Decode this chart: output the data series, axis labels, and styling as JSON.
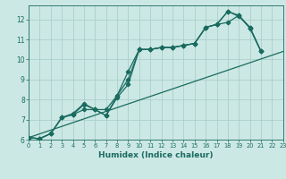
{
  "xlabel": "Humidex (Indice chaleur)",
  "bg_color": "#cce8e4",
  "grid_color": "#aacfca",
  "line_color": "#1a6b60",
  "xlim_min": 0,
  "xlim_max": 23,
  "ylim_min": 6,
  "ylim_max": 12.7,
  "yticks": [
    6,
    7,
    8,
    9,
    10,
    11,
    12
  ],
  "xticks": [
    0,
    1,
    2,
    3,
    4,
    5,
    6,
    7,
    8,
    9,
    10,
    11,
    12,
    13,
    14,
    15,
    16,
    17,
    18,
    19,
    20,
    21,
    22,
    23
  ],
  "series1_x": [
    0,
    1,
    2,
    3,
    4,
    5,
    6,
    7,
    8,
    9,
    10,
    11,
    12,
    13,
    14,
    15,
    16,
    17,
    18,
    19,
    20,
    21
  ],
  "series1_y": [
    6.1,
    6.05,
    6.3,
    7.1,
    7.3,
    7.8,
    7.5,
    7.2,
    8.2,
    9.4,
    10.5,
    10.5,
    10.6,
    10.6,
    10.7,
    10.8,
    11.6,
    11.75,
    11.85,
    12.2,
    11.6,
    10.4
  ],
  "series2_x": [
    0,
    1,
    2,
    3,
    4,
    5,
    6,
    7,
    8,
    9,
    10,
    11,
    12,
    13,
    14,
    15,
    16,
    17,
    18,
    19,
    20,
    21
  ],
  "series2_y": [
    6.1,
    6.05,
    6.3,
    7.1,
    7.25,
    7.5,
    7.5,
    7.2,
    8.1,
    8.75,
    10.5,
    10.5,
    10.6,
    10.6,
    10.7,
    10.8,
    11.6,
    11.75,
    12.4,
    12.15,
    11.6,
    10.4
  ],
  "series3_x": [
    0,
    1,
    2,
    3,
    4,
    5,
    6,
    7,
    8,
    9,
    10,
    11,
    12,
    13,
    14,
    15,
    16,
    17,
    18,
    19,
    20,
    21
  ],
  "series3_y": [
    6.1,
    6.05,
    6.3,
    7.1,
    7.25,
    7.75,
    7.5,
    7.5,
    8.2,
    9.0,
    10.5,
    10.5,
    10.6,
    10.6,
    10.7,
    10.8,
    11.6,
    11.75,
    12.4,
    12.2,
    11.55,
    10.4
  ],
  "series4_x": [
    0,
    23
  ],
  "series4_y": [
    6.1,
    10.4
  ]
}
